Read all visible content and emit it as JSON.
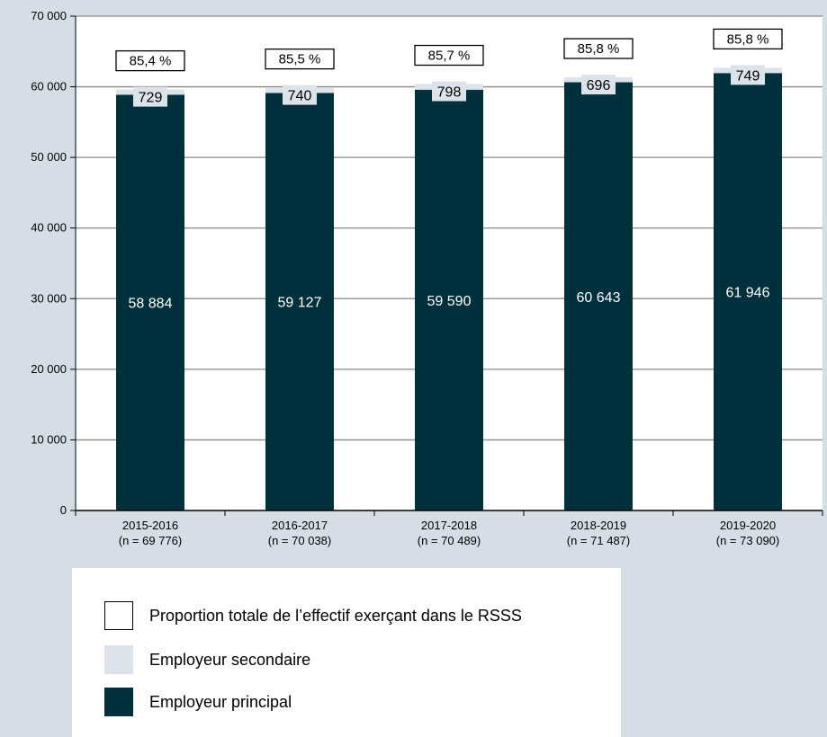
{
  "chart_data": {
    "type": "bar",
    "stacked": true,
    "categories": [
      "2015-2016",
      "2016-2017",
      "2017-2018",
      "2018-2019",
      "2019-2020"
    ],
    "category_sublabels": [
      "(n = 69 776)",
      "(n = 70 038)",
      "(n = 70 489)",
      "(n = 71 487)",
      "(n = 73 090)"
    ],
    "series": [
      {
        "name": "Employeur principal",
        "values": [
          58884,
          59127,
          59590,
          60643,
          61946
        ],
        "labels": [
          "58 884",
          "59 127",
          "59 590",
          "60 643",
          "61 946"
        ],
        "color": "#00303c"
      },
      {
        "name": "Employeur secondaire",
        "values": [
          729,
          740,
          798,
          696,
          749
        ],
        "labels": [
          "729",
          "740",
          "798",
          "696",
          "749"
        ],
        "color": "#dce3ea"
      }
    ],
    "proportion": {
      "name": "Proportion totale de l’effectif exerçant dans le RSSS",
      "labels": [
        "85,4 %",
        "85,5 %",
        "85,7 %",
        "85,8 %",
        "85,8 %"
      ]
    },
    "ylim": [
      0,
      70000
    ],
    "yticks": [
      0,
      10000,
      20000,
      30000,
      40000,
      50000,
      60000,
      70000
    ],
    "ytick_labels": [
      "0",
      "10 000",
      "20 000",
      "30 000",
      "40 000",
      "50 000",
      "60 000",
      "70 000"
    ],
    "grid": true,
    "legend_position": "bottom-left"
  },
  "legend": {
    "items": [
      {
        "label": "Proportion totale de l’effectif exerçant dans le RSSS",
        "color": "#ffffff"
      },
      {
        "label": "Employeur secondaire",
        "color": "#dce3ea"
      },
      {
        "label": "Employeur principal",
        "color": "#00303c"
      }
    ]
  }
}
